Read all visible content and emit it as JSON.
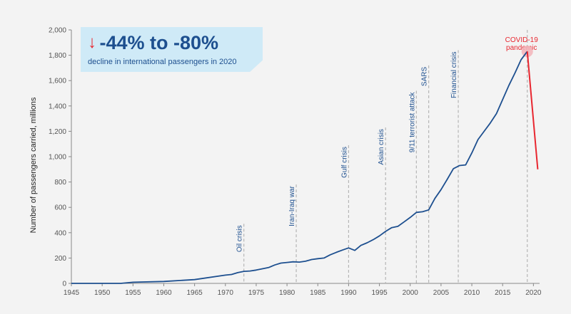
{
  "callout": {
    "arrow_icon": "down-arrow-icon",
    "headline": "-44% to -80%",
    "subtext": "decline in international passengers in 2020"
  },
  "chart_data": {
    "type": "line",
    "title": "",
    "xlabel": "",
    "ylabel": "Number of passengers carried, millions",
    "xlim": [
      1945,
      2021
    ],
    "ylim": [
      0,
      2000
    ],
    "x_ticks": [
      1945,
      1950,
      1955,
      1960,
      1965,
      1970,
      1975,
      1980,
      1985,
      1990,
      1995,
      2000,
      2005,
      2010,
      2015,
      2020
    ],
    "y_ticks": [
      0,
      200,
      400,
      600,
      800,
      1000,
      1200,
      1400,
      1600,
      1800,
      2000
    ],
    "y_tick_labels": [
      "0",
      "200",
      "400",
      "600",
      "800",
      "1,000",
      "1,200",
      "1,400",
      "1,600",
      "1,800",
      "2,000"
    ],
    "grid": false,
    "colors": {
      "line": "#1d4f8f",
      "decline": "#e8262f",
      "event_line": "#b5b5b5",
      "highlight": "#f2b3b8"
    },
    "series": [
      {
        "x": [
          1945,
          1953,
          1955,
          1960,
          1965,
          1970,
          1971,
          1972,
          1973,
          1974,
          1975,
          1976,
          1977,
          1978,
          1979,
          1980,
          1981,
          1982,
          1983,
          1984,
          1985,
          1986,
          1987,
          1988,
          1989,
          1990,
          1991,
          1992,
          1993,
          1994,
          1995,
          1996,
          1997,
          1998,
          1999,
          2000,
          2001,
          2002,
          2003,
          2004,
          2005,
          2006,
          2007,
          2008,
          2009,
          2010,
          2011,
          2012,
          2013,
          2014,
          2015,
          2016,
          2017,
          2018,
          2019
        ],
        "y": [
          0,
          0,
          9,
          15,
          30,
          65,
          70,
          85,
          95,
          98,
          105,
          115,
          125,
          145,
          160,
          165,
          170,
          168,
          175,
          188,
          195,
          200,
          225,
          245,
          263,
          280,
          260,
          300,
          320,
          345,
          375,
          410,
          440,
          450,
          485,
          520,
          560,
          565,
          580,
          670,
          740,
          820,
          905,
          930,
          935,
          1030,
          1135,
          1200,
          1265,
          1340,
          1450,
          1560,
          1660,
          1765,
          1830
        ]
      }
    ],
    "decline": {
      "x": [
        2019,
        2020.7
      ],
      "y": [
        1830,
        900
      ]
    },
    "annotations": [
      {
        "label": "Oil crisis",
        "year": 1973,
        "top": 470
      },
      {
        "label": "Iran-Iraq war",
        "year": 1981.5,
        "top": 780
      },
      {
        "label": "Gulf crisis",
        "year": 1990,
        "top": 1090
      },
      {
        "label": "Asian crisis",
        "year": 1996,
        "top": 1230
      },
      {
        "label": "9/11 terrorist attack",
        "year": 2001,
        "top": 1520
      },
      {
        "label": "SARS",
        "year": 2003,
        "top": 1720
      },
      {
        "label": "Financial crisis",
        "year": 2007.8,
        "top": 1840
      }
    ],
    "covid_label": [
      "COVID-19",
      "pandemic"
    ],
    "covid_year": 2019
  }
}
